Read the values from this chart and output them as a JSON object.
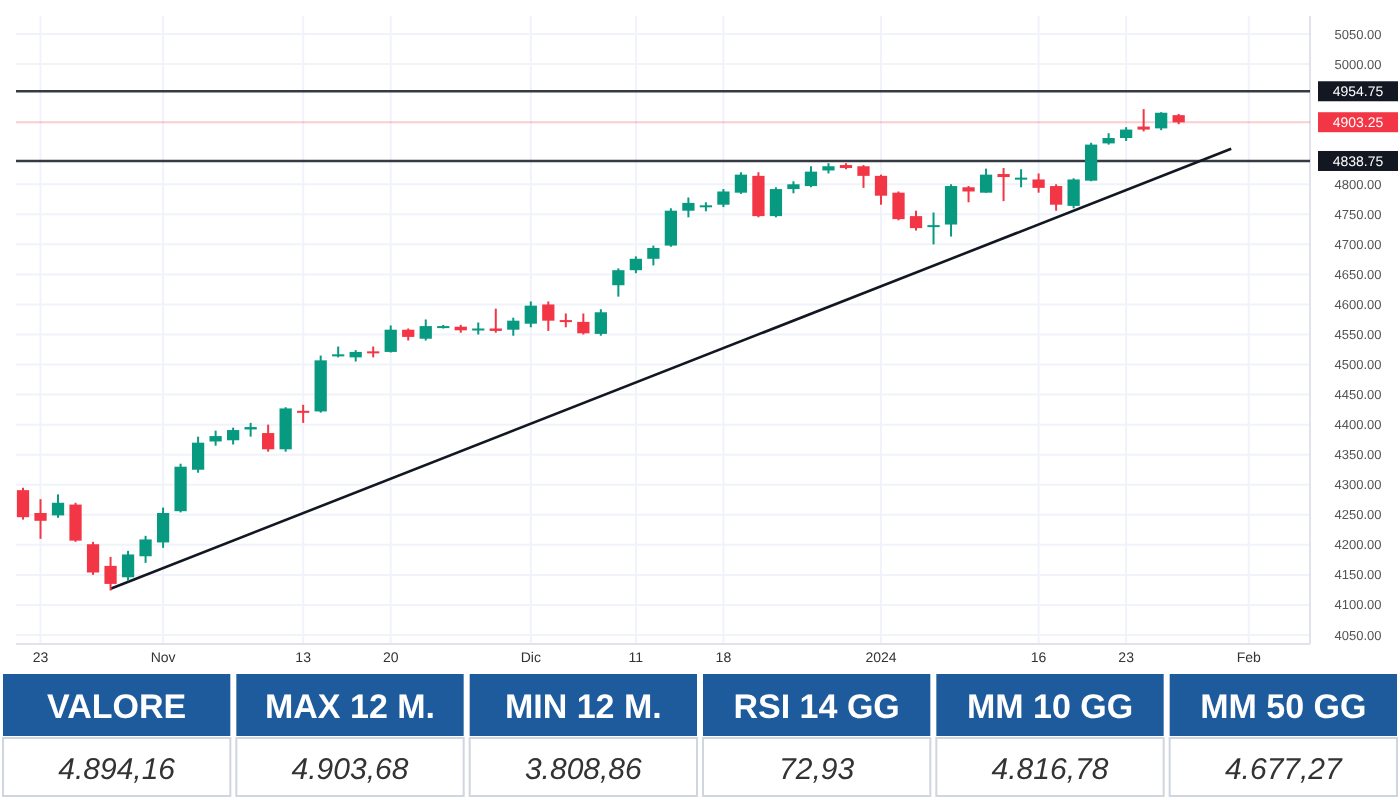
{
  "chart_data": [
    {
      "type": "candlestick",
      "categories": [
        null,
        "23",
        null,
        null,
        null,
        null,
        null,
        null,
        "Nov",
        null,
        null,
        null,
        null,
        null,
        null,
        null,
        "13",
        null,
        null,
        null,
        null,
        "20",
        null,
        null,
        null,
        null,
        null,
        null,
        null,
        "Dic",
        null,
        null,
        null,
        null,
        null,
        "11",
        null,
        null,
        null,
        null,
        "18",
        null,
        null,
        null,
        null,
        null,
        null,
        null,
        null,
        "2024",
        null,
        null,
        null,
        null,
        null,
        null,
        null,
        null,
        "16",
        null,
        null,
        null,
        null,
        "23",
        null,
        null,
        null,
        null,
        null,
        null,
        "Feb",
        null,
        null,
        null
      ],
      "ohlc": [
        [
          4291,
          4295,
          4242,
          4246
        ],
        [
          4253,
          4276,
          4210,
          4240
        ],
        [
          4249,
          4284,
          4245,
          4270
        ],
        [
          4267,
          4270,
          4205,
          4207
        ],
        [
          4201,
          4205,
          4150,
          4154
        ],
        [
          4165,
          4180,
          4124,
          4135
        ],
        [
          4146,
          4190,
          4140,
          4184
        ],
        [
          4181,
          4215,
          4170,
          4209
        ],
        [
          4204,
          4262,
          4195,
          4253
        ],
        [
          4256,
          4335,
          4254,
          4330
        ],
        [
          4325,
          4380,
          4320,
          4370
        ],
        [
          4372,
          4390,
          4365,
          4381
        ],
        [
          4374,
          4395,
          4367,
          4391
        ],
        [
          4392,
          4403,
          4380,
          4396
        ],
        [
          4386,
          4400,
          4355,
          4359
        ],
        [
          4359,
          4429,
          4355,
          4427
        ],
        [
          4423,
          4433,
          4403,
          4420
        ],
        [
          4422,
          4515,
          4420,
          4507
        ],
        [
          4514,
          4530,
          4512,
          4517
        ],
        [
          4512,
          4524,
          4505,
          4521
        ],
        [
          4522,
          4530,
          4512,
          4520
        ],
        [
          4521,
          4565,
          4520,
          4558
        ],
        [
          4558,
          4560,
          4540,
          4546
        ],
        [
          4543,
          4575,
          4540,
          4564
        ],
        [
          4562,
          4566,
          4560,
          4564
        ],
        [
          4563,
          4566,
          4553,
          4557
        ],
        [
          4558,
          4570,
          4550,
          4560
        ],
        [
          4560,
          4593,
          4553,
          4556
        ],
        [
          4558,
          4578,
          4548,
          4573
        ],
        [
          4568,
          4605,
          4562,
          4598
        ],
        [
          4600,
          4605,
          4556,
          4573
        ],
        [
          4574,
          4585,
          4562,
          4573
        ],
        [
          4571,
          4585,
          4550,
          4552
        ],
        [
          4551,
          4592,
          4548,
          4587
        ],
        [
          4632,
          4660,
          4613,
          4657
        ],
        [
          4657,
          4680,
          4652,
          4676
        ],
        [
          4676,
          4698,
          4665,
          4694
        ],
        [
          4698,
          4760,
          4696,
          4756
        ],
        [
          4756,
          4778,
          4745,
          4769
        ],
        [
          4763,
          4770,
          4755,
          4765
        ],
        [
          4766,
          4792,
          4762,
          4788
        ],
        [
          4786,
          4820,
          4784,
          4816
        ],
        [
          4814,
          4820,
          4745,
          4747
        ],
        [
          4747,
          4795,
          4745,
          4792
        ],
        [
          4792,
          4805,
          4785,
          4800
        ],
        [
          4797,
          4830,
          4795,
          4821
        ],
        [
          4823,
          4835,
          4818,
          4830
        ],
        [
          4832,
          4835,
          4825,
          4827
        ],
        [
          4830,
          4832,
          4794,
          4814
        ],
        [
          4814,
          4816,
          4766,
          4781
        ],
        [
          4786,
          4788,
          4740,
          4742
        ],
        [
          4747,
          4756,
          4723,
          4727
        ],
        [
          4730,
          4753,
          4700,
          4732
        ],
        [
          4733,
          4800,
          4713,
          4797
        ],
        [
          4795,
          4797,
          4770,
          4788
        ],
        [
          4786,
          4826,
          4786,
          4816
        ],
        [
          4817,
          4827,
          4772,
          4812
        ],
        [
          4809,
          4825,
          4795,
          4811
        ],
        [
          4808,
          4818,
          4786,
          4794
        ],
        [
          4797,
          4800,
          4756,
          4766
        ],
        [
          4764,
          4810,
          4760,
          4808
        ],
        [
          4806,
          4869,
          4805,
          4866
        ],
        [
          4868,
          4885,
          4866,
          4877
        ],
        [
          4877,
          4895,
          4872,
          4891
        ],
        [
          4896,
          4925,
          4888,
          4891
        ],
        [
          4893,
          4920,
          4890,
          4919
        ],
        [
          4915,
          4917,
          4900,
          4903
        ],
        null,
        null,
        null,
        null,
        null,
        null,
        null
      ],
      "series": [
        {
          "type": "line",
          "color": "#131722",
          "values": [
            null,
            null,
            null,
            null,
            null,
            4127,
            null,
            null,
            null,
            null,
            null,
            null,
            null,
            null,
            null,
            null,
            null,
            null,
            null,
            null,
            null,
            null,
            null,
            null,
            null,
            null,
            null,
            null,
            null,
            null,
            null,
            null,
            null,
            null,
            null,
            null,
            null,
            null,
            null,
            null,
            null,
            null,
            null,
            null,
            null,
            null,
            null,
            null,
            null,
            null,
            null,
            null,
            null,
            null,
            null,
            null,
            null,
            null,
            null,
            null,
            null,
            null,
            null,
            null,
            null,
            null,
            null,
            null,
            null,
            4859,
            null,
            null,
            null,
            null
          ]
        }
      ],
      "ylim": [
        4035,
        5080
      ],
      "yticks": [
        {
          "value": 4050,
          "label": "4050.00"
        },
        {
          "value": 4100,
          "label": "4100.00"
        },
        {
          "value": 4150,
          "label": "4150.00"
        },
        {
          "value": 4200,
          "label": "4200.00"
        },
        {
          "value": 4250,
          "label": "4250.00"
        },
        {
          "value": 4300,
          "label": "4300.00"
        },
        {
          "value": 4350,
          "label": "4350.00"
        },
        {
          "value": 4400,
          "label": "4400.00"
        },
        {
          "value": 4450,
          "label": "4450.00"
        },
        {
          "value": 4500,
          "label": "4500.00"
        },
        {
          "value": 4550,
          "label": "4550.00"
        },
        {
          "value": 4600,
          "label": "4600.00"
        },
        {
          "value": 4650,
          "label": "4650.00"
        },
        {
          "value": 4700,
          "label": "4700.00"
        },
        {
          "value": 4750,
          "label": "4750.00"
        },
        {
          "value": 4800,
          "label": "4800.00"
        },
        {
          "value": 5000,
          "label": "5000.00"
        },
        {
          "value": 5050,
          "label": "5050.00"
        }
      ],
      "ref_lines": [
        {
          "axis": "y",
          "value": 4954.75,
          "label": "4954.75",
          "color": "#131722"
        },
        {
          "axis": "y",
          "value": 4838.75,
          "label": "4838.75",
          "color": "#131722"
        },
        {
          "axis": "y",
          "value": 4903.25,
          "label": "4903.25",
          "color": "#f23645"
        }
      ],
      "grid": true
    },
    {
      "type": "other",
      "categories": [
        "VALORE",
        "MAX 12 M.",
        "MIN 12 M.",
        "RSI 14 GG",
        "MM 10 GG",
        "MM 50 GG"
      ],
      "value_labels": [
        "4.894,16",
        "4.903,68",
        "3.808,86",
        "72,93",
        "4.816,78",
        "4.677,27"
      ]
    }
  ]
}
